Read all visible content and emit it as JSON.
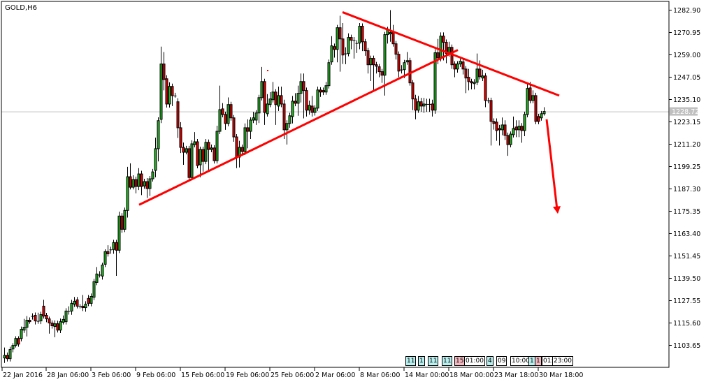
{
  "chart_data": {
    "type": "candlestick",
    "title": "GOLD,H6",
    "symbol": "GOLD",
    "timeframe": "H6",
    "ylim": [
      1103.65,
      1282.9
    ],
    "y_ticks": [
      "1282.90",
      "1270.95",
      "1259.00",
      "1247.05",
      "1235.10",
      "1223.15",
      "1211.20",
      "1199.25",
      "1187.30",
      "1175.35",
      "1163.40",
      "1151.45",
      "1139.50",
      "1127.55",
      "1115.60",
      "1103.65"
    ],
    "x_ticks": [
      {
        "bar": 0,
        "label": "22 Jan 2016"
      },
      {
        "bar": 16,
        "label": "28 Jan 06:00"
      },
      {
        "bar": 32,
        "label": "3 Feb 06:00"
      },
      {
        "bar": 48,
        "label": "9 Feb 06:00"
      },
      {
        "bar": 64,
        "label": "15 Feb 06:00"
      },
      {
        "bar": 80,
        "label": "19 Feb 06:00"
      },
      {
        "bar": 96,
        "label": "25 Feb 06:00"
      },
      {
        "bar": 112,
        "label": "2 Mar 06:00"
      },
      {
        "bar": 128,
        "label": "8 Mar 06:00"
      },
      {
        "bar": 144,
        "label": "14 Mar 00:00"
      },
      {
        "bar": 160,
        "label": "18 Mar 00:00"
      },
      {
        "bar": 176,
        "label": "23 Mar 18:00"
      },
      {
        "bar": 192,
        "label": "30 Mar 18:00"
      }
    ],
    "current_price": 1228.72,
    "current_price_label": "1228.72",
    "grid": false,
    "colors": {
      "bull": "#22b022",
      "bear": "#e00000",
      "wick": "#000000",
      "trendline": "#ff0000",
      "price_line": "#c0c0c0",
      "price_label_bg": "#c0c0c0"
    },
    "trendlines": [
      {
        "name": "support",
        "from": {
          "bar": 49.25,
          "price": 1178.8
        },
        "to": {
          "bar": 163.25,
          "price": 1261.6
        }
      },
      {
        "name": "resistance",
        "from": {
          "bar": 122,
          "price": 1281.8
        },
        "to": {
          "bar": 199.5,
          "price": 1237.2
        }
      }
    ],
    "arrow": {
      "from": {
        "bar": 195,
        "price": 1224.5
      },
      "to": {
        "bar": 198.75,
        "price": 1174.0
      }
    },
    "ohlc_columns": [
      "open",
      "high",
      "low",
      "close"
    ],
    "candles": [
      [
        1096.9,
        1100.6,
        1095.4,
        1099.1
      ],
      [
        1096.9,
        1102.5,
        1094.2,
        1098.3
      ],
      [
        1098.3,
        1099.8,
        1095.0,
        1096.5
      ],
      [
        1096.5,
        1102.9,
        1095.0,
        1101.4
      ],
      [
        1101.7,
        1104.8,
        1099.9,
        1103.6
      ],
      [
        1103.6,
        1108.5,
        1102.5,
        1107.3
      ],
      [
        1107.3,
        1108.5,
        1102.9,
        1104.3
      ],
      [
        1107.3,
        1113.7,
        1105.8,
        1112.2
      ],
      [
        1111.8,
        1117.8,
        1110.3,
        1113.3
      ],
      [
        1113.3,
        1119.3,
        1108.4,
        1117.1
      ],
      [
        1117.1,
        1118.6,
        1115.2,
        1116.3
      ],
      [
        1118.9,
        1120.8,
        1117.4,
        1119.3
      ],
      [
        1119.7,
        1121.2,
        1114.8,
        1116.7
      ],
      [
        1116.7,
        1121.1,
        1115.2,
        1116.7
      ],
      [
        1116.7,
        1121.6,
        1115.0,
        1120.1
      ],
      [
        1124.6,
        1128.0,
        1118.0,
        1119.3
      ],
      [
        1119.7,
        1121.0,
        1116.0,
        1117.8
      ],
      [
        1117.8,
        1119.0,
        1109.9,
        1115.6
      ],
      [
        1115.6,
        1117.0,
        1112.6,
        1114.1
      ],
      [
        1113.7,
        1117.0,
        1108.0,
        1115.2
      ],
      [
        1115.2,
        1116.8,
        1110.5,
        1111.8
      ],
      [
        1111.8,
        1118.0,
        1110.2,
        1116.3
      ],
      [
        1116.0,
        1119.6,
        1114.8,
        1117.5
      ],
      [
        1116.3,
        1123.5,
        1114.8,
        1122.0
      ],
      [
        1121.6,
        1124.5,
        1120.1,
        1122.0
      ],
      [
        1122.0,
        1128.0,
        1120.0,
        1126.1
      ],
      [
        1125.7,
        1129.5,
        1124.2,
        1127.2
      ],
      [
        1128.0,
        1129.5,
        1123.4,
        1124.6
      ],
      [
        1124.6,
        1125.7,
        1123.4,
        1124.6
      ],
      [
        1124.6,
        1130.6,
        1122.0,
        1123.8
      ],
      [
        1123.8,
        1127.2,
        1121.6,
        1125.7
      ],
      [
        1128.7,
        1130.6,
        1124.6,
        1126.1
      ],
      [
        1126.1,
        1131.4,
        1124.5,
        1129.8
      ],
      [
        1129.4,
        1139.2,
        1127.9,
        1137.7
      ],
      [
        1137.3,
        1145.5,
        1135.8,
        1141.8
      ],
      [
        1141.4,
        1143.3,
        1139.9,
        1141.4
      ],
      [
        1140.7,
        1147.8,
        1138.8,
        1146.6
      ],
      [
        1147.0,
        1155.0,
        1145.5,
        1153.8
      ],
      [
        1153.8,
        1157.2,
        1151.1,
        1152.6
      ],
      [
        1154.9,
        1156.4,
        1152.6,
        1154.9
      ],
      [
        1154.9,
        1160.1,
        1152.6,
        1158.6
      ],
      [
        1158.6,
        1160.1,
        1140.8,
        1154.5
      ],
      [
        1154.5,
        1175.1,
        1153.0,
        1172.8
      ],
      [
        1172.8,
        1174.3,
        1163.8,
        1165.7
      ],
      [
        1165.7,
        1177.3,
        1164.2,
        1175.8
      ],
      [
        1175.8,
        1199.1,
        1172.0,
        1193.8
      ],
      [
        1193.8,
        1201.0,
        1187.0,
        1188.2
      ],
      [
        1188.2,
        1194.6,
        1187.0,
        1192.3
      ],
      [
        1192.3,
        1193.9,
        1184.9,
        1188.6
      ],
      [
        1188.6,
        1198.4,
        1186.7,
        1195.3
      ],
      [
        1195.3,
        1197.0,
        1184.0,
        1188.6
      ],
      [
        1188.9,
        1192.7,
        1187.4,
        1191.2
      ],
      [
        1191.2,
        1193.1,
        1182.5,
        1187.5
      ],
      [
        1187.5,
        1194.2,
        1183.5,
        1192.7
      ],
      [
        1192.7,
        1198.0,
        1191.2,
        1196.4
      ],
      [
        1197.2,
        1214.7,
        1193.5,
        1208.8
      ],
      [
        1208.8,
        1225.6,
        1202.0,
        1223.8
      ],
      [
        1224.5,
        1263.4,
        1222.5,
        1254.1
      ],
      [
        1254.1,
        1260.5,
        1240.0,
        1245.8
      ],
      [
        1246.2,
        1248.1,
        1230.8,
        1232.7
      ],
      [
        1232.7,
        1244.3,
        1230.8,
        1242.1
      ],
      [
        1242.1,
        1243.6,
        1231.6,
        1237.2
      ],
      [
        1237.2,
        1238.7,
        1236.1,
        1237.2
      ],
      [
        1233.9,
        1235.8,
        1214.5,
        1220.0
      ],
      [
        1220.0,
        1223.0,
        1206.5,
        1209.5
      ],
      [
        1209.5,
        1212.1,
        1200.2,
        1206.9
      ],
      [
        1206.9,
        1210.3,
        1205.8,
        1208.8
      ],
      [
        1208.8,
        1210.3,
        1191.9,
        1193.4
      ],
      [
        1193.4,
        1213.3,
        1191.9,
        1211.4
      ],
      [
        1211.0,
        1217.7,
        1209.5,
        1212.5
      ],
      [
        1212.5,
        1214.0,
        1198.3,
        1199.8
      ],
      [
        1200.2,
        1209.9,
        1193.5,
        1208.4
      ],
      [
        1208.4,
        1209.9,
        1196.5,
        1202.0
      ],
      [
        1202.0,
        1214.0,
        1200.5,
        1212.2
      ],
      [
        1212.2,
        1213.7,
        1197.0,
        1208.4
      ],
      [
        1208.4,
        1211.0,
        1206.9,
        1209.2
      ],
      [
        1209.2,
        1210.7,
        1200.9,
        1202.4
      ],
      [
        1202.4,
        1221.1,
        1200.9,
        1218.1
      ],
      [
        1218.1,
        1242.5,
        1216.6,
        1229.7
      ],
      [
        1230.1,
        1233.2,
        1225.6,
        1227.1
      ],
      [
        1227.1,
        1228.6,
        1218.9,
        1222.3
      ],
      [
        1222.3,
        1236.2,
        1220.8,
        1232.4
      ],
      [
        1232.4,
        1233.9,
        1223.8,
        1225.3
      ],
      [
        1225.3,
        1226.8,
        1212.5,
        1215.1
      ],
      [
        1215.1,
        1216.6,
        1198.4,
        1204.3
      ],
      [
        1204.3,
        1213.0,
        1198.8,
        1209.5
      ],
      [
        1209.5,
        1211.0,
        1205.4,
        1207.3
      ],
      [
        1207.3,
        1222.3,
        1205.4,
        1220.0
      ],
      [
        1220.0,
        1224.5,
        1209.0,
        1218.1
      ],
      [
        1218.1,
        1225.6,
        1214.0,
        1224.1
      ],
      [
        1224.1,
        1228.5,
        1222.5,
        1225.3
      ],
      [
        1224.1,
        1229.4,
        1221.5,
        1227.9
      ],
      [
        1227.9,
        1237.6,
        1222.5,
        1236.1
      ],
      [
        1236.1,
        1252.5,
        1234.6,
        1244.7
      ],
      [
        1244.7,
        1246.2,
        1221.5,
        1228.2
      ],
      [
        1227.5,
        1238.0,
        1226.0,
        1232.7
      ],
      [
        1232.4,
        1239.0,
        1231.0,
        1235.4
      ],
      [
        1235.0,
        1244.5,
        1233.5,
        1239.1
      ],
      [
        1239.1,
        1240.6,
        1221.5,
        1232.4
      ],
      [
        1231.6,
        1242.0,
        1229.0,
        1237.2
      ],
      [
        1237.2,
        1242.0,
        1231.0,
        1232.7
      ],
      [
        1232.7,
        1235.0,
        1214.0,
        1218.9
      ],
      [
        1218.9,
        1224.0,
        1211.0,
        1222.3
      ],
      [
        1222.3,
        1228.0,
        1220.0,
        1226.4
      ],
      [
        1226.0,
        1237.0,
        1222.3,
        1234.2
      ],
      [
        1234.2,
        1238.5,
        1231.5,
        1233.1
      ],
      [
        1233.1,
        1242.5,
        1226.4,
        1238.4
      ],
      [
        1238.4,
        1249.0,
        1233.5,
        1244.7
      ],
      [
        1244.7,
        1249.0,
        1225.0,
        1239.9
      ],
      [
        1239.9,
        1241.5,
        1226.0,
        1229.4
      ],
      [
        1229.4,
        1234.5,
        1227.0,
        1232.0
      ],
      [
        1231.6,
        1237.0,
        1226.0,
        1228.2
      ],
      [
        1228.2,
        1232.0,
        1226.5,
        1230.5
      ],
      [
        1230.5,
        1242.0,
        1229.0,
        1240.2
      ],
      [
        1240.2,
        1241.7,
        1236.5,
        1239.1
      ],
      [
        1239.9,
        1241.5,
        1237.5,
        1239.1
      ],
      [
        1239.1,
        1244.5,
        1237.6,
        1242.5
      ],
      [
        1242.5,
        1256.5,
        1241.0,
        1254.8
      ],
      [
        1255.2,
        1269.0,
        1253.7,
        1263.8
      ],
      [
        1263.4,
        1265.0,
        1257.5,
        1261.9
      ],
      [
        1261.9,
        1275.0,
        1255.0,
        1273.5
      ],
      [
        1273.5,
        1279.9,
        1250.0,
        1267.5
      ],
      [
        1267.5,
        1276.0,
        1254.1,
        1258.9
      ],
      [
        1259.7,
        1263.0,
        1254.0,
        1259.7
      ],
      [
        1259.7,
        1270.5,
        1258.2,
        1268.3
      ],
      [
        1268.3,
        1269.8,
        1262.0,
        1266.8
      ],
      [
        1266.8,
        1268.5,
        1257.0,
        1266.8
      ],
      [
        1265.3,
        1266.8,
        1260.0,
        1265.3
      ],
      [
        1265.3,
        1276.0,
        1262.0,
        1274.3
      ],
      [
        1274.3,
        1275.8,
        1261.0,
        1266.0
      ],
      [
        1266.0,
        1267.5,
        1258.5,
        1261.2
      ],
      [
        1261.2,
        1262.7,
        1249.0,
        1253.7
      ],
      [
        1253.7,
        1258.6,
        1245.0,
        1257.1
      ],
      [
        1257.1,
        1258.6,
        1240.0,
        1253.7
      ],
      [
        1253.7,
        1255.2,
        1249.0,
        1252.9
      ],
      [
        1252.6,
        1254.1,
        1247.0,
        1250.0
      ],
      [
        1250.0,
        1251.5,
        1244.0,
        1248.1
      ],
      [
        1248.1,
        1271.3,
        1237.2,
        1269.8
      ],
      [
        1269.8,
        1274.0,
        1265.0,
        1272.4
      ],
      [
        1270.2,
        1282.9,
        1266.0,
        1270.9
      ],
      [
        1270.9,
        1275.0,
        1263.4,
        1264.9
      ],
      [
        1264.9,
        1266.4,
        1256.5,
        1259.3
      ],
      [
        1259.3,
        1260.8,
        1247.0,
        1250.3
      ],
      [
        1251.1,
        1253.5,
        1249.0,
        1251.1
      ],
      [
        1251.1,
        1256.3,
        1246.6,
        1254.8
      ],
      [
        1255.2,
        1260.5,
        1253.7,
        1255.9
      ],
      [
        1255.9,
        1257.4,
        1242.5,
        1244.0
      ],
      [
        1244.0,
        1245.5,
        1229.4,
        1235.4
      ],
      [
        1235.4,
        1237.6,
        1224.5,
        1229.4
      ],
      [
        1229.4,
        1237.0,
        1228.0,
        1233.9
      ],
      [
        1233.9,
        1236.0,
        1228.5,
        1231.6
      ],
      [
        1231.6,
        1236.0,
        1228.0,
        1232.7
      ],
      [
        1232.7,
        1235.5,
        1228.5,
        1232.7
      ],
      [
        1232.7,
        1235.5,
        1228.5,
        1232.7
      ],
      [
        1232.7,
        1235.0,
        1226.0,
        1229.4
      ],
      [
        1229.4,
        1262.0,
        1227.5,
        1260.1
      ],
      [
        1260.1,
        1267.5,
        1254.0,
        1257.4
      ],
      [
        1257.4,
        1271.0,
        1255.5,
        1269.0
      ],
      [
        1269.0,
        1271.0,
        1256.0,
        1265.7
      ],
      [
        1265.7,
        1267.2,
        1254.5,
        1259.7
      ],
      [
        1259.7,
        1266.0,
        1258.0,
        1263.0
      ],
      [
        1263.0,
        1264.5,
        1251.5,
        1253.7
      ],
      [
        1254.1,
        1255.6,
        1247.0,
        1251.4
      ],
      [
        1251.4,
        1255.6,
        1249.5,
        1254.1
      ],
      [
        1254.1,
        1257.0,
        1252.5,
        1255.6
      ],
      [
        1255.2,
        1256.7,
        1248.5,
        1251.4
      ],
      [
        1251.4,
        1253.0,
        1238.5,
        1246.6
      ],
      [
        1247.0,
        1251.5,
        1240.0,
        1244.7
      ],
      [
        1244.7,
        1246.2,
        1240.5,
        1244.0
      ],
      [
        1243.6,
        1246.0,
        1240.5,
        1244.3
      ],
      [
        1244.3,
        1259.7,
        1242.8,
        1251.4
      ],
      [
        1251.4,
        1256.0,
        1245.8,
        1247.3
      ],
      [
        1246.6,
        1251.0,
        1245.0,
        1247.7
      ],
      [
        1247.7,
        1249.2,
        1231.0,
        1234.6
      ],
      [
        1234.6,
        1236.1,
        1233.1,
        1234.6
      ],
      [
        1234.6,
        1236.1,
        1210.5,
        1223.4
      ],
      [
        1223.4,
        1225.0,
        1219.0,
        1222.3
      ],
      [
        1223.0,
        1225.0,
        1213.0,
        1218.5
      ],
      [
        1219.6,
        1221.5,
        1210.5,
        1218.9
      ],
      [
        1218.9,
        1225.5,
        1216.0,
        1221.5
      ],
      [
        1221.5,
        1224.0,
        1213.5,
        1215.9
      ],
      [
        1215.9,
        1217.4,
        1205.0,
        1211.0
      ],
      [
        1211.0,
        1218.0,
        1209.5,
        1216.6
      ],
      [
        1216.3,
        1226.0,
        1214.8,
        1219.6
      ],
      [
        1220.4,
        1224.0,
        1215.0,
        1218.9
      ],
      [
        1218.9,
        1224.0,
        1215.0,
        1220.8
      ],
      [
        1220.8,
        1222.5,
        1212.0,
        1218.5
      ],
      [
        1218.5,
        1228.6,
        1215.5,
        1227.1
      ],
      [
        1227.1,
        1243.6,
        1225.6,
        1241.0
      ],
      [
        1241.3,
        1244.5,
        1233.1,
        1234.6
      ],
      [
        1234.6,
        1240.0,
        1233.1,
        1237.2
      ],
      [
        1237.2,
        1238.7,
        1221.9,
        1223.4
      ],
      [
        1226.0,
        1227.5,
        1221.9,
        1223.4
      ],
      [
        1225.3,
        1229.0,
        1223.8,
        1227.5
      ],
      [
        1227.5,
        1231.0,
        1226.5,
        1228.72
      ]
    ]
  },
  "object_labels": [
    {
      "text": "11",
      "color": "#b8f0f0"
    },
    {
      "text": "1",
      "color": "#b8f0f0"
    },
    {
      "text": "11",
      "color": "#b8f0f0"
    },
    {
      "text": "11",
      "color": "#b8f0f0"
    },
    {
      "text": "15",
      "color": "#f4b8c0"
    },
    {
      "text": "01:00",
      "color": "#ffffff"
    },
    {
      "text": "4",
      "color": "#b8f0f0"
    },
    {
      "text": "09",
      "color": "#ffffff"
    },
    {
      "text": "10:00",
      "color": "#ffffff"
    },
    {
      "text": "1",
      "color": "#b8f0f0"
    },
    {
      "text": "1",
      "color": "#f4b8c0"
    },
    {
      "text": "01:",
      "color": "#ffffff"
    },
    {
      "text": "23:00",
      "color": "#ffffff"
    }
  ]
}
